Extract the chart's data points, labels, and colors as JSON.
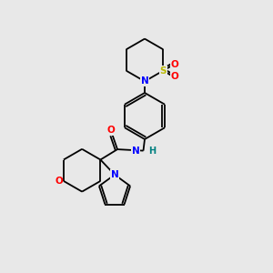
{
  "bg_color": "#e8e8e8",
  "atom_colors": {
    "C": "#000000",
    "N": "#0000ff",
    "O": "#ff0000",
    "S": "#b8b800",
    "H": "#008080"
  },
  "bond_color": "#000000",
  "figsize": [
    3.0,
    3.0
  ],
  "dpi": 100,
  "lw": 1.3,
  "fs": 7.5
}
